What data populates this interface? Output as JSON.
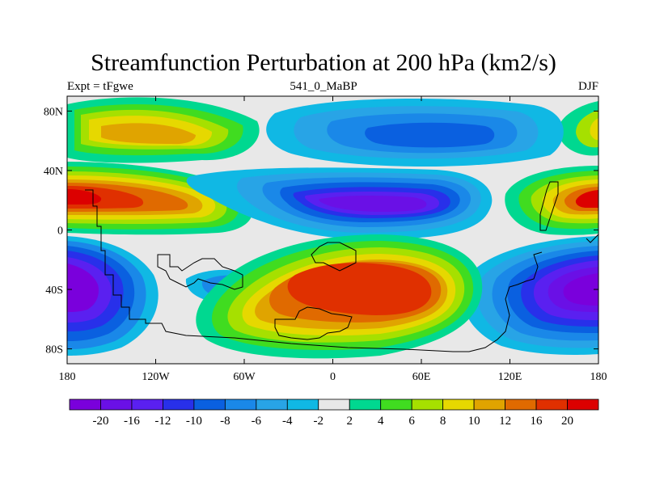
{
  "title": "Streamfunction Perturbation at 200 hPa (km2/s)",
  "left_label": "Expt = tFgwe",
  "center_label": "541_0_MaBP",
  "right_label": "DJF",
  "lat_ticks": [
    {
      "label": "80N",
      "value": 80
    },
    {
      "label": "40N",
      "value": 40
    },
    {
      "label": "0",
      "value": 0
    },
    {
      "label": "40S",
      "value": -40
    },
    {
      "label": "80S",
      "value": -80
    }
  ],
  "lon_ticks": [
    {
      "label": "180",
      "value": -180
    },
    {
      "label": "120W",
      "value": -120
    },
    {
      "label": "60W",
      "value": -60
    },
    {
      "label": "0",
      "value": 0
    },
    {
      "label": "60E",
      "value": 60
    },
    {
      "label": "120E",
      "value": 120
    },
    {
      "label": "180",
      "value": 180
    }
  ],
  "colorbar": {
    "colors": [
      "#7a00dc",
      "#6a10e6",
      "#5a20f0",
      "#2830ea",
      "#0a60e0",
      "#1a88e8",
      "#28a4e6",
      "#10b8e4",
      "#e8e8e8",
      "#00d890",
      "#40dc20",
      "#a6e000",
      "#e6d800",
      "#e0a400",
      "#e06a00",
      "#e03000",
      "#dc0000"
    ],
    "labels": [
      "-20",
      "-16",
      "-12",
      "-10",
      "-8",
      "-6",
      "-4",
      "-2",
      "2",
      "4",
      "6",
      "8",
      "10",
      "12",
      "16",
      "20"
    ]
  }
}
